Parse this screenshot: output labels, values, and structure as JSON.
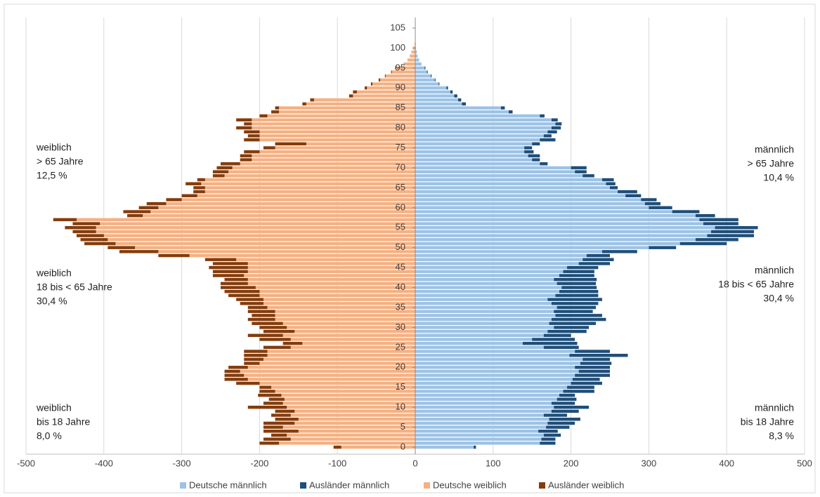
{
  "chart_data": {
    "type": "pyramid",
    "categories": [
      0,
      null,
      null,
      null,
      null,
      5,
      null,
      null,
      null,
      null,
      10,
      null,
      null,
      null,
      null,
      15,
      null,
      null,
      null,
      null,
      20,
      null,
      null,
      null,
      null,
      25,
      null,
      null,
      null,
      null,
      30,
      null,
      null,
      null,
      null,
      35,
      null,
      null,
      null,
      null,
      40,
      null,
      null,
      null,
      null,
      45,
      null,
      null,
      null,
      null,
      50,
      null,
      null,
      null,
      null,
      55,
      null,
      null,
      null,
      null,
      60,
      null,
      null,
      null,
      null,
      65,
      null,
      null,
      null,
      null,
      70,
      null,
      null,
      null,
      null,
      75,
      null,
      null,
      null,
      null,
      80,
      null,
      null,
      null,
      null,
      85,
      null,
      null,
      null,
      null,
      90,
      null,
      null,
      null,
      null,
      95,
      null,
      null,
      null,
      null,
      100,
      null,
      null,
      null,
      null,
      105
    ],
    "series": [
      {
        "name": "Deutsche männlich",
        "color": "#9dc3e6",
        "values": [
          75,
          160,
          162,
          165,
          158,
          168,
          170,
          172,
          165,
          175,
          178,
          175,
          182,
          185,
          190,
          195,
          200,
          202,
          205,
          210,
          205,
          212,
          215,
          198,
          205,
          165,
          138,
          150,
          165,
          170,
          178,
          172,
          175,
          180,
          178,
          182,
          175,
          170,
          180,
          185,
          188,
          182,
          178,
          185,
          190,
          195,
          210,
          215,
          220,
          240,
          300,
          340,
          360,
          375,
          380,
          385,
          370,
          365,
          360,
          330,
          300,
          295,
          290,
          270,
          260,
          250,
          245,
          240,
          215,
          205,
          200,
          160,
          150,
          145,
          140,
          140,
          150,
          160,
          165,
          170,
          175,
          180,
          175,
          160,
          120,
          110,
          60,
          55,
          50,
          45,
          40,
          30,
          25,
          20,
          15,
          12,
          8,
          5,
          3,
          2,
          1,
          0.5,
          0,
          0,
          0,
          0
        ]
      },
      {
        "name": "Ausländer männlich",
        "color": "#1f4e79",
        "values": [
          3,
          20,
          18,
          22,
          25,
          30,
          35,
          40,
          30,
          35,
          45,
          30,
          25,
          20,
          40,
          35,
          40,
          35,
          45,
          40,
          45,
          40,
          35,
          75,
          45,
          45,
          70,
          55,
          35,
          50,
          45,
          60,
          70,
          60,
          50,
          50,
          60,
          70,
          55,
          50,
          45,
          50,
          55,
          45,
          40,
          40,
          40,
          40,
          30,
          45,
          35,
          60,
          55,
          60,
          55,
          55,
          45,
          50,
          25,
          35,
          30,
          20,
          20,
          20,
          25,
          10,
          12,
          15,
          15,
          15,
          20,
          10,
          10,
          15,
          12,
          10,
          10,
          20,
          10,
          12,
          12,
          8,
          8,
          6,
          5,
          5,
          5,
          4,
          4,
          3,
          2,
          1,
          1,
          1,
          1,
          1,
          0,
          0,
          0,
          0,
          0,
          0,
          0,
          0,
          0,
          0
        ]
      },
      {
        "name": "Deutsche weiblich",
        "color": "#f4b183",
        "values": [
          -95,
          -175,
          -160,
          -165,
          -150,
          -170,
          -155,
          -150,
          -160,
          -155,
          -165,
          -170,
          -168,
          -172,
          -180,
          -185,
          -200,
          -215,
          -220,
          -225,
          -215,
          -200,
          -195,
          -190,
          -190,
          -160,
          -145,
          -160,
          -170,
          -155,
          -165,
          -170,
          -180,
          -180,
          -180,
          -190,
          -195,
          -195,
          -200,
          -200,
          -205,
          -215,
          -215,
          -220,
          -215,
          -215,
          -215,
          -230,
          -290,
          -330,
          -360,
          -385,
          -395,
          -400,
          -410,
          -410,
          -405,
          -435,
          -350,
          -340,
          -330,
          -320,
          -300,
          -280,
          -270,
          -270,
          -275,
          -270,
          -245,
          -240,
          -235,
          -225,
          -210,
          -210,
          -200,
          -180,
          -140,
          -200,
          -200,
          -200,
          -210,
          -210,
          -210,
          -190,
          -175,
          -175,
          -140,
          -130,
          -80,
          -75,
          -62,
          -55,
          -45,
          -38,
          -30,
          -25,
          -15,
          -10,
          -7,
          -5,
          -3,
          -1,
          0,
          0,
          0,
          0
        ]
      },
      {
        "name": "Ausländer weiblich",
        "color": "#843c0c",
        "values": [
          -10,
          -25,
          -35,
          -20,
          -45,
          -25,
          -40,
          -30,
          -25,
          -25,
          -50,
          -25,
          -20,
          -30,
          -20,
          -15,
          -30,
          -30,
          -25,
          -20,
          -25,
          -20,
          -25,
          -30,
          -30,
          -35,
          -25,
          -40,
          -45,
          -40,
          -35,
          -40,
          -35,
          -30,
          -35,
          -25,
          -30,
          -35,
          -40,
          -45,
          -45,
          -35,
          -30,
          -40,
          -45,
          -50,
          -45,
          -40,
          -40,
          -50,
          -35,
          -40,
          -35,
          -35,
          -30,
          -40,
          -35,
          -30,
          -20,
          -35,
          -25,
          -25,
          -20,
          -20,
          -15,
          -15,
          -20,
          -10,
          -15,
          -20,
          -20,
          -25,
          -15,
          -15,
          -20,
          -15,
          -40,
          -20,
          -15,
          -20,
          -20,
          -10,
          -20,
          -10,
          -10,
          -5,
          -5,
          -5,
          -5,
          -5,
          -3,
          -2,
          -2,
          -1,
          -1,
          -1,
          0,
          0,
          0,
          0,
          0,
          0,
          0,
          0,
          0,
          0
        ]
      }
    ],
    "xlim": [
      -500,
      500
    ],
    "xticks": [
      -500,
      -400,
      -300,
      -200,
      -100,
      0,
      100,
      200,
      300,
      400,
      500
    ],
    "grid": true,
    "annotations": [
      {
        "lines": [
          "weiblich",
          "> 65 Jahre",
          "12,5 %"
        ]
      },
      {
        "lines": [
          "weiblich",
          "18 bis < 65 Jahre",
          "30,4 %"
        ]
      },
      {
        "lines": [
          "weiblich",
          "bis 18 Jahre",
          "8,0 %"
        ]
      },
      {
        "lines": [
          "männlich",
          "> 65 Jahre",
          "10,4 %"
        ]
      },
      {
        "lines": [
          "männlich",
          "18 bis < 65 Jahre",
          "30,4 %"
        ]
      },
      {
        "lines": [
          "männlich",
          "bis 18 Jahre",
          "8,3 %"
        ]
      }
    ]
  }
}
